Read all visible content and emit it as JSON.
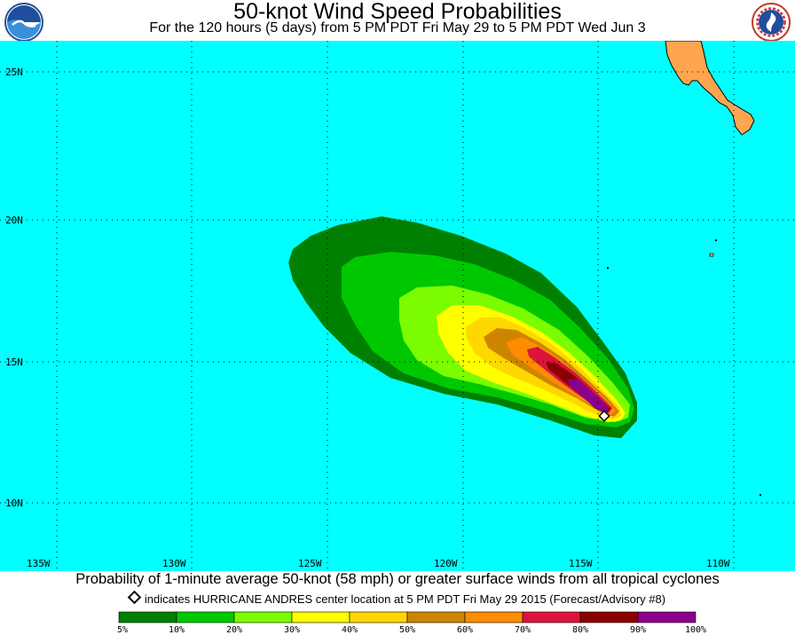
{
  "header": {
    "title": "50-knot Wind Speed Probabilities",
    "subtitle": "For the 120 hours (5 days) from 5 PM PDT Fri May 29 to 5 PM PDT Wed Jun 3",
    "left_logo_text": "NOAA",
    "right_logo_text": "NATIONAL WEATHER SERVICE"
  },
  "map": {
    "ocean_color": "#00ffff",
    "land_color": "#ffa54f",
    "grid": "dotted",
    "lat_labels": [
      "25N",
      "20N",
      "15N",
      "10N"
    ],
    "lon_labels": [
      "135W",
      "130W",
      "125W",
      "120W",
      "115W",
      "110W"
    ],
    "storm_center_lat": 13.1,
    "storm_center_lon": 114.5
  },
  "footer": {
    "caption": "Probability of 1-minute average 50-knot (58 mph) or greater surface winds from all tropical cyclones",
    "advisory": "indicates HURRICANE ANDRES center location at 5 PM PDT Fri May 29 2015 (Forecast/Advisory #8)"
  },
  "legend": {
    "colors": [
      "#008000",
      "#00c800",
      "#7cfc00",
      "#ffff00",
      "#ffd700",
      "#cd8500",
      "#ff8c00",
      "#dc143c",
      "#8b0000",
      "#8b008b"
    ],
    "labels": [
      "5%",
      "10%",
      "20%",
      "30%",
      "40%",
      "50%",
      "60%",
      "70%",
      "80%",
      "90%",
      "100%"
    ]
  }
}
